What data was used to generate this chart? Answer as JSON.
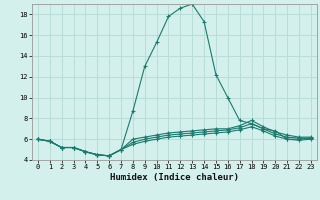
{
  "title": "",
  "xlabel": "Humidex (Indice chaleur)",
  "ylabel": "",
  "bg_color": "#d4f0ec",
  "grid_color": "#b8ddd8",
  "line_color": "#1a7a6e",
  "xmin": -0.5,
  "xmax": 23.5,
  "ymin": 4,
  "ymax": 19,
  "xticks": [
    0,
    1,
    2,
    3,
    4,
    5,
    6,
    7,
    8,
    9,
    10,
    11,
    12,
    13,
    14,
    15,
    16,
    17,
    18,
    19,
    20,
    21,
    22,
    23
  ],
  "yticks": [
    4,
    6,
    8,
    10,
    12,
    14,
    16,
    18
  ],
  "line1_x": [
    0,
    1,
    2,
    3,
    4,
    5,
    6,
    7,
    8,
    9,
    10,
    11,
    12,
    13,
    14,
    15,
    16,
    17,
    18,
    19,
    20,
    21,
    22,
    23
  ],
  "line1_y": [
    6.0,
    5.8,
    5.2,
    5.2,
    4.8,
    4.5,
    4.4,
    5.0,
    8.7,
    13.0,
    15.3,
    17.8,
    18.6,
    19.0,
    17.3,
    12.2,
    10.0,
    7.8,
    7.5,
    7.0,
    6.8,
    6.0,
    6.0,
    6.1
  ],
  "line2_x": [
    0,
    1,
    2,
    3,
    4,
    5,
    6,
    7,
    8,
    9,
    10,
    11,
    12,
    13,
    14,
    15,
    16,
    17,
    18,
    19,
    20,
    21,
    22,
    23
  ],
  "line2_y": [
    6.0,
    5.8,
    5.2,
    5.2,
    4.8,
    4.5,
    4.4,
    5.0,
    5.5,
    5.8,
    6.0,
    6.2,
    6.3,
    6.4,
    6.5,
    6.6,
    6.7,
    6.9,
    7.2,
    6.8,
    6.3,
    6.0,
    5.9,
    6.0
  ],
  "line3_x": [
    0,
    1,
    2,
    3,
    4,
    5,
    6,
    7,
    8,
    9,
    10,
    11,
    12,
    13,
    14,
    15,
    16,
    17,
    18,
    19,
    20,
    21,
    22,
    23
  ],
  "line3_y": [
    6.0,
    5.8,
    5.2,
    5.2,
    4.8,
    4.5,
    4.4,
    5.0,
    5.7,
    6.0,
    6.2,
    6.4,
    6.5,
    6.6,
    6.7,
    6.8,
    6.9,
    7.1,
    7.5,
    7.0,
    6.5,
    6.2,
    6.1,
    6.1
  ],
  "line4_x": [
    0,
    1,
    2,
    3,
    4,
    5,
    6,
    7,
    8,
    9,
    10,
    11,
    12,
    13,
    14,
    15,
    16,
    17,
    18,
    19,
    20,
    21,
    22,
    23
  ],
  "line4_y": [
    6.0,
    5.8,
    5.2,
    5.2,
    4.8,
    4.5,
    4.4,
    5.0,
    6.0,
    6.2,
    6.4,
    6.6,
    6.7,
    6.8,
    6.9,
    7.0,
    7.0,
    7.3,
    7.8,
    7.2,
    6.7,
    6.4,
    6.2,
    6.2
  ]
}
